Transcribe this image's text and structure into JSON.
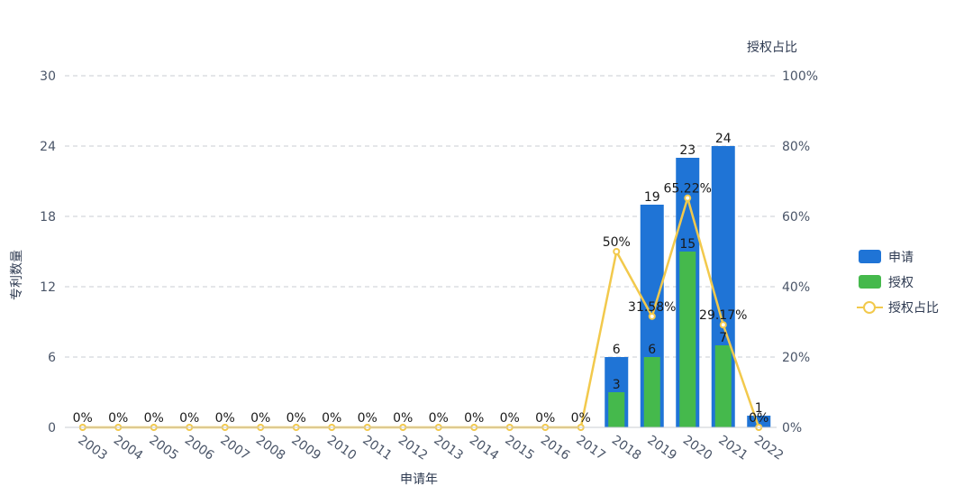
{
  "chart_data": {
    "type": "bar",
    "categories": [
      "2003",
      "2004",
      "2005",
      "2006",
      "2007",
      "2008",
      "2009",
      "2010",
      "2011",
      "2012",
      "2013",
      "2014",
      "2015",
      "2016",
      "2017",
      "2018",
      "2019",
      "2020",
      "2021",
      "2022"
    ],
    "xlabel": "申请年",
    "ylabel": "专利数量",
    "y2label": "授权占比",
    "ylim": [
      0,
      30
    ],
    "yticks": [
      0,
      6,
      12,
      18,
      24,
      30
    ],
    "y2lim": [
      0,
      100
    ],
    "y2ticks": [
      "0%",
      "20%",
      "40%",
      "60%",
      "80%",
      "100%"
    ],
    "grid": true,
    "legend_position": "right",
    "series": [
      {
        "name": "申请",
        "kind": "bar",
        "color": "#1f74d6",
        "values": [
          0,
          0,
          0,
          0,
          0,
          0,
          0,
          0,
          0,
          0,
          0,
          0,
          0,
          0,
          0,
          6,
          19,
          23,
          24,
          1
        ]
      },
      {
        "name": "授权",
        "kind": "bar",
        "color": "#45b94c",
        "values": [
          0,
          0,
          0,
          0,
          0,
          0,
          0,
          0,
          0,
          0,
          0,
          0,
          0,
          0,
          0,
          3,
          6,
          15,
          7,
          0
        ]
      },
      {
        "name": "授权占比",
        "kind": "line",
        "axis": "right",
        "color": "#f2c94c",
        "values": [
          0,
          0,
          0,
          0,
          0,
          0,
          0,
          0,
          0,
          0,
          0,
          0,
          0,
          0,
          0,
          50,
          31.58,
          65.22,
          29.17,
          0
        ],
        "labels": [
          "0%",
          "0%",
          "0%",
          "0%",
          "0%",
          "0%",
          "0%",
          "0%",
          "0%",
          "0%",
          "0%",
          "0%",
          "0%",
          "0%",
          "0%",
          "50%",
          "31.58%",
          "65.22%",
          "29.17%",
          "0%"
        ]
      }
    ]
  }
}
